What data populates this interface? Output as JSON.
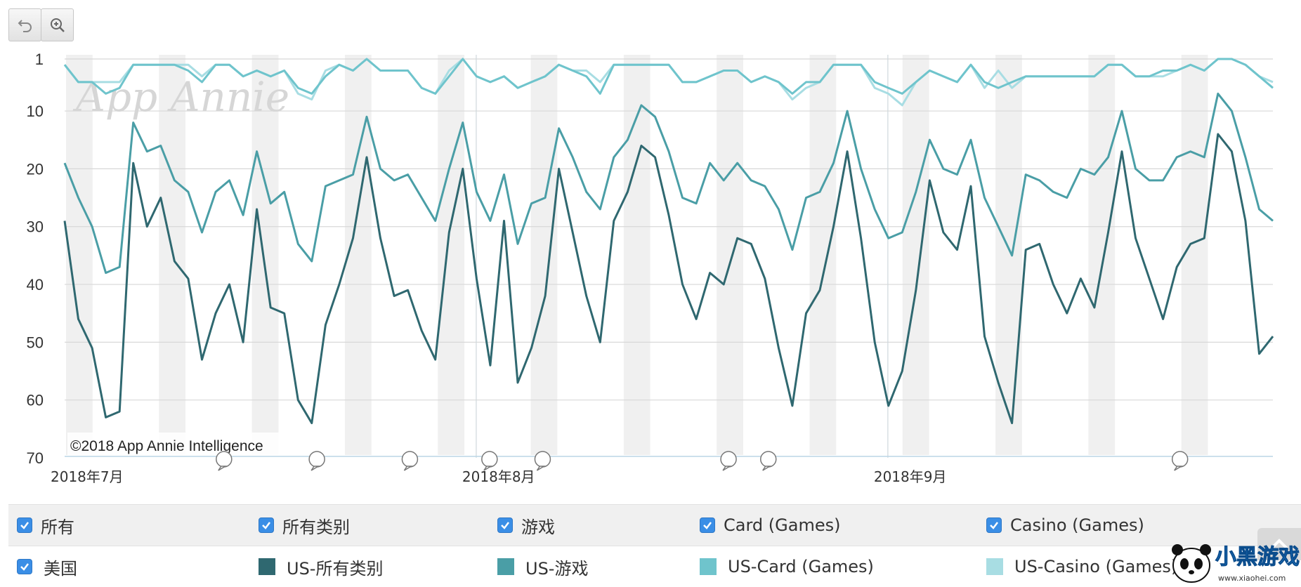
{
  "toolbar": {
    "reset_icon": "undo-icon",
    "zoom_icon": "zoom-in-icon"
  },
  "chart_data": {
    "type": "line",
    "y_reversed": true,
    "ylim": [
      1,
      70
    ],
    "yticks": [
      1,
      10,
      20,
      30,
      40,
      50,
      60,
      70
    ],
    "x_start": "2018-07-01",
    "x_end": "2018-09-30",
    "month_labels": [
      {
        "label": "2018年7月",
        "date": "2018-07-01"
      },
      {
        "label": "2018年8月",
        "date": "2018-08-01"
      },
      {
        "label": "2018年9月",
        "date": "2018-09-01"
      }
    ],
    "weekend_bands_start": [
      "2018-07-01",
      "2018-07-08",
      "2018-07-15",
      "2018-07-22",
      "2018-07-29",
      "2018-08-05",
      "2018-08-12",
      "2018-08-19",
      "2018-08-26",
      "2018-09-02",
      "2018-09-09",
      "2018-09-16",
      "2018-09-23",
      "2018-09-30"
    ],
    "watermark": "App Annie",
    "copyright": "©2018 App Annie Intelligence",
    "annotation_markers": [
      "2018-07-13",
      "2018-07-20",
      "2018-07-27",
      "2018-08-02",
      "2018-08-06",
      "2018-08-20",
      "2018-08-23",
      "2018-09-23"
    ],
    "series": [
      {
        "name": "US-所有类别",
        "color": "#2f6870",
        "values": [
          29,
          46,
          51,
          63,
          62,
          19,
          30,
          25,
          36,
          39,
          53,
          45,
          40,
          50,
          27,
          44,
          45,
          60,
          64,
          47,
          40,
          32,
          18,
          32,
          42,
          41,
          48,
          53,
          31,
          20,
          39,
          54,
          29,
          57,
          51,
          42,
          20,
          31,
          42,
          50,
          29,
          24,
          16,
          18,
          28,
          40,
          46,
          38,
          40,
          32,
          33,
          39,
          51,
          61,
          45,
          41,
          30,
          17,
          32,
          50,
          61,
          55,
          41,
          22,
          31,
          34,
          23,
          49,
          57,
          64,
          34,
          33,
          40,
          45,
          39,
          44,
          31,
          17,
          32,
          39,
          46,
          37,
          33,
          32,
          14,
          17,
          29,
          52,
          49
        ]
      },
      {
        "name": "US-游戏",
        "color": "#4a9ea6",
        "values": [
          19,
          25,
          30,
          38,
          37,
          12,
          17,
          16,
          22,
          24,
          31,
          24,
          22,
          28,
          17,
          26,
          24,
          33,
          36,
          23,
          22,
          21,
          11,
          20,
          22,
          21,
          25,
          29,
          20,
          12,
          24,
          29,
          21,
          33,
          26,
          25,
          13,
          18,
          24,
          27,
          18,
          15,
          9,
          11,
          17,
          25,
          26,
          19,
          22,
          19,
          22,
          23,
          27,
          34,
          25,
          24,
          19,
          10,
          20,
          27,
          32,
          31,
          24,
          15,
          20,
          21,
          15,
          25,
          30,
          35,
          21,
          22,
          24,
          25,
          20,
          21,
          18,
          10,
          20,
          22,
          22,
          18,
          17,
          18,
          7,
          10,
          18,
          27,
          29
        ]
      },
      {
        "name": "US-Card (Games)",
        "color": "#6fc4cc",
        "values": [
          2,
          5,
          5,
          7,
          6,
          2,
          2,
          2,
          2,
          3,
          5,
          2,
          2,
          4,
          3,
          4,
          3,
          6,
          7,
          4,
          2,
          3,
          1,
          3,
          3,
          3,
          6,
          7,
          4,
          1,
          4,
          5,
          4,
          6,
          5,
          4,
          2,
          3,
          4,
          7,
          2,
          2,
          2,
          2,
          2,
          5,
          5,
          4,
          3,
          3,
          5,
          4,
          5,
          7,
          5,
          5,
          2,
          2,
          2,
          5,
          6,
          7,
          5,
          3,
          4,
          5,
          2,
          5,
          6,
          5,
          4,
          4,
          4,
          4,
          4,
          4,
          2,
          2,
          4,
          4,
          3,
          3,
          2,
          3,
          1,
          1,
          2,
          4,
          6
        ]
      },
      {
        "name": "US-Casino (Games)",
        "color": "#a8dde3",
        "values": [
          2,
          5,
          5,
          5,
          5,
          2,
          2,
          2,
          2,
          2,
          4,
          2,
          2,
          4,
          3,
          4,
          3,
          7,
          8,
          3,
          2,
          3,
          1,
          3,
          3,
          3,
          6,
          7,
          3,
          1,
          4,
          5,
          4,
          6,
          5,
          4,
          2,
          3,
          3,
          5,
          2,
          2,
          2,
          2,
          2,
          5,
          5,
          4,
          3,
          3,
          5,
          4,
          5,
          8,
          6,
          5,
          2,
          2,
          2,
          6,
          7,
          9,
          5,
          3,
          4,
          5,
          2,
          6,
          3,
          6,
          4,
          4,
          4,
          4,
          4,
          4,
          2,
          2,
          4,
          4,
          4,
          3,
          2,
          3,
          1,
          1,
          2,
          4,
          5
        ]
      }
    ]
  },
  "legend": {
    "top": [
      {
        "label": "所有"
      },
      {
        "label": "所有类别"
      },
      {
        "label": "游戏"
      },
      {
        "label": "Card (Games)"
      },
      {
        "label": "Casino (Games)"
      }
    ],
    "bottom": [
      {
        "label": "美国",
        "type": "checkbox"
      },
      {
        "label": "US-所有类别",
        "color": "#2f6870"
      },
      {
        "label": "US-游戏",
        "color": "#4a9ea6"
      },
      {
        "label": "US-Card (Games)",
        "color": "#6fc4cc"
      },
      {
        "label": "US-Casino (Games)",
        "color": "#a8dde3"
      }
    ]
  },
  "site_logo": {
    "text": "小黑游戏",
    "url_text": "www.xiaohei.com"
  }
}
